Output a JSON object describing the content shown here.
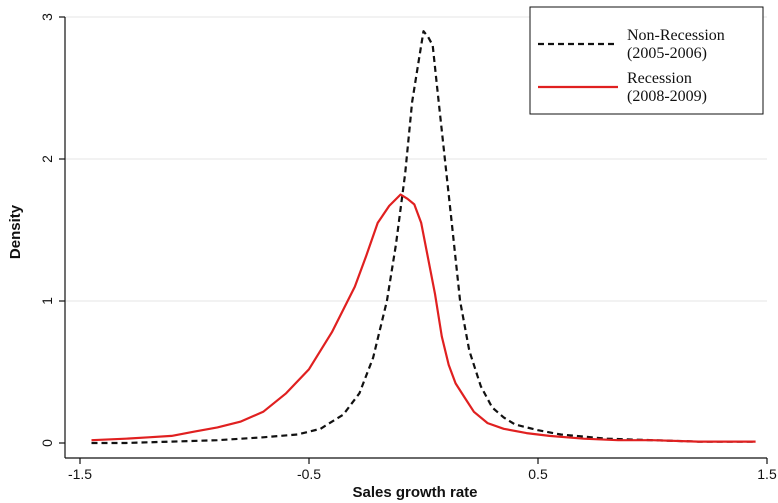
{
  "chart_data": {
    "type": "line",
    "title": "",
    "xlabel": "Sales growth rate",
    "ylabel": "Density",
    "xlim": [
      -1.5,
      1.5
    ],
    "ylim": [
      0,
      3
    ],
    "xticks": [
      -1.5,
      -0.5,
      0.5,
      1.5
    ],
    "xtick_labels": [
      "-1.5",
      "-0.5",
      "0.5",
      "1.5"
    ],
    "yticks": [
      0,
      1,
      2,
      3
    ],
    "ytick_labels": [
      "0",
      "1",
      "2",
      "3"
    ],
    "grid": "horizontal",
    "legend_position": "top-right",
    "series": [
      {
        "name": "Non-Recession\n(2005-2006)",
        "legend_lines": [
          "Non-Recession",
          "(2005-2006)"
        ],
        "color": "#111111",
        "style": "dashed",
        "x": [
          -1.45,
          -1.3,
          -1.1,
          -0.9,
          -0.7,
          -0.55,
          -0.45,
          -0.35,
          -0.28,
          -0.22,
          -0.16,
          -0.12,
          -0.08,
          -0.05,
          -0.02,
          0.0,
          0.02,
          0.04,
          0.06,
          0.09,
          0.12,
          0.16,
          0.2,
          0.25,
          0.3,
          0.35,
          0.4,
          0.5,
          0.6,
          0.8,
          1.0,
          1.2,
          1.45
        ],
        "y": [
          0.0,
          0.0,
          0.01,
          0.02,
          0.04,
          0.06,
          0.1,
          0.2,
          0.35,
          0.6,
          1.0,
          1.4,
          1.9,
          2.4,
          2.7,
          2.9,
          2.86,
          2.8,
          2.5,
          2.05,
          1.6,
          1.0,
          0.65,
          0.4,
          0.25,
          0.18,
          0.13,
          0.09,
          0.06,
          0.03,
          0.02,
          0.01,
          0.01
        ]
      },
      {
        "name": "Recession\n(2008-2009)",
        "legend_lines": [
          "Recession",
          "(2008-2009)"
        ],
        "color": "#e02020",
        "style": "solid",
        "x": [
          -1.45,
          -1.3,
          -1.2,
          -1.1,
          -1.0,
          -0.9,
          -0.8,
          -0.7,
          -0.6,
          -0.5,
          -0.4,
          -0.3,
          -0.25,
          -0.2,
          -0.15,
          -0.1,
          -0.07,
          -0.04,
          -0.01,
          0.02,
          0.05,
          0.08,
          0.11,
          0.14,
          0.18,
          0.22,
          0.28,
          0.35,
          0.45,
          0.55,
          0.7,
          0.85,
          1.0,
          1.2,
          1.45
        ],
        "y": [
          0.02,
          0.03,
          0.04,
          0.05,
          0.08,
          0.11,
          0.15,
          0.22,
          0.35,
          0.52,
          0.78,
          1.1,
          1.32,
          1.55,
          1.67,
          1.75,
          1.72,
          1.68,
          1.55,
          1.3,
          1.05,
          0.75,
          0.55,
          0.42,
          0.32,
          0.22,
          0.14,
          0.1,
          0.07,
          0.05,
          0.03,
          0.02,
          0.02,
          0.01,
          0.01
        ]
      }
    ]
  }
}
